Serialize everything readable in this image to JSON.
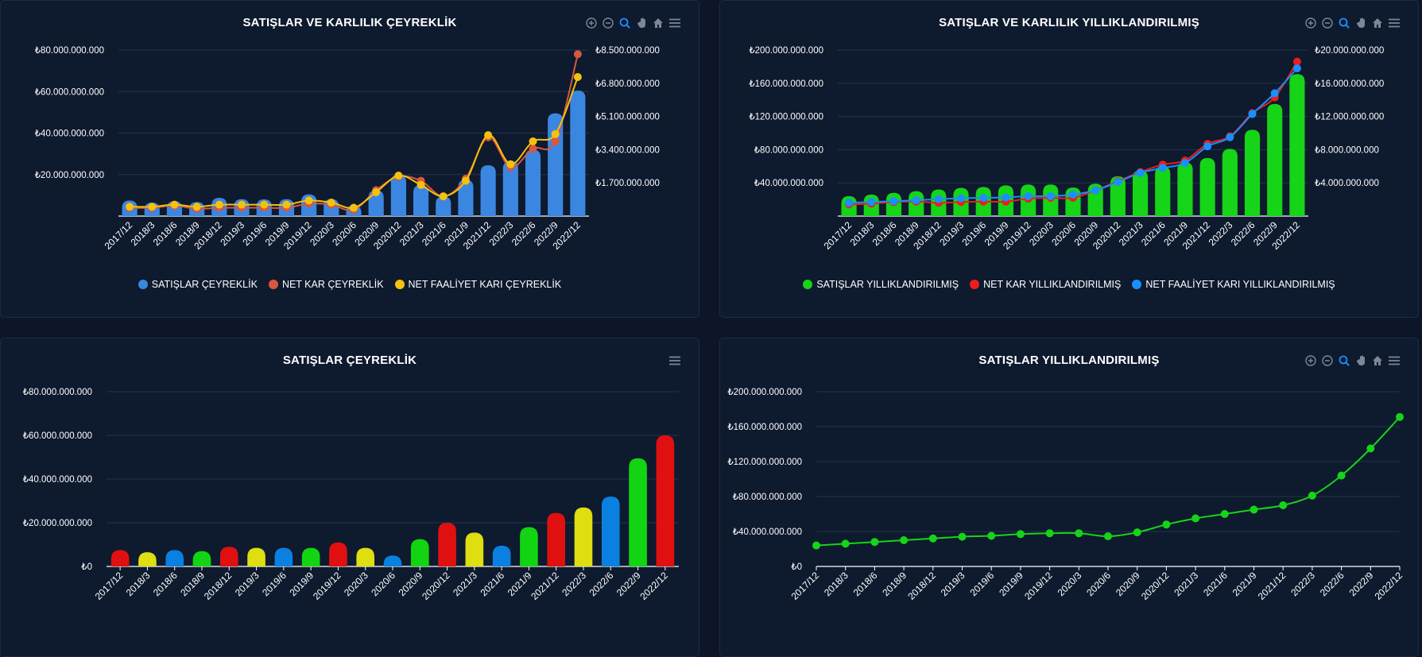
{
  "panels": [
    {
      "title": "SATIŞLAR VE KARLILIK ÇEYREKLİK",
      "toolbar": [
        "zoom-in-icon",
        "zoom-out-icon",
        "selection-zoom-icon",
        "pan-hand-icon",
        "home-reset-icon",
        "menu-icon"
      ],
      "legend": [
        {
          "label": "SATIŞLAR ÇEYREKLİK",
          "color": "#3b86e0"
        },
        {
          "label": "NET KAR ÇEYREKLİK",
          "color": "#d9573f"
        },
        {
          "label": "NET FAALİYET KARI ÇEYREKLİK",
          "color": "#f4c20d"
        }
      ]
    },
    {
      "title": "SATIŞLAR VE KARLILIK YILLIKLANDIRILMIŞ",
      "toolbar": [
        "zoom-in-icon",
        "zoom-out-icon",
        "selection-zoom-icon",
        "pan-hand-icon",
        "home-reset-icon",
        "menu-icon"
      ],
      "legend": [
        {
          "label": "SATIŞLAR YILLIKLANDIRILMIŞ",
          "color": "#16d418"
        },
        {
          "label": "NET KAR YILLIKLANDIRILMIŞ",
          "color": "#ee1c1c"
        },
        {
          "label": "NET FAALİYET KARI YILLIKLANDIRILMIŞ",
          "color": "#1a8fff"
        }
      ]
    },
    {
      "title": "SATIŞLAR ÇEYREKLİK",
      "toolbar": [
        "menu-icon"
      ]
    },
    {
      "title": "SATIŞLAR YILLIKLANDIRILMIŞ",
      "toolbar": [
        "zoom-in-icon",
        "zoom-out-icon",
        "selection-zoom-icon",
        "pan-hand-icon",
        "home-reset-icon",
        "menu-icon"
      ]
    }
  ],
  "chart_data": [
    {
      "type": "bar+line",
      "title": "SATIŞLAR VE KARLILIK ÇEYREKLİK",
      "categories": [
        "2017/12",
        "2018/3",
        "2018/6",
        "2018/9",
        "2018/12",
        "2019/3",
        "2019/6",
        "2019/9",
        "2019/12",
        "2020/3",
        "2020/6",
        "2020/9",
        "2020/12",
        "2021/3",
        "2021/6",
        "2021/9",
        "2021/12",
        "2022/3",
        "2022/6",
        "2022/9",
        "2022/12"
      ],
      "y_left": {
        "ticks": [
          20000000000,
          40000000000,
          60000000000,
          80000000000
        ],
        "tick_labels": [
          "₺20.000.000.000",
          "₺40.000.000.000",
          "₺60.000.000.000",
          "₺80.000.000.000"
        ],
        "range": [
          0,
          80000000000
        ]
      },
      "y_right": {
        "ticks": [
          1700000000,
          3400000000,
          5100000000,
          6800000000,
          8500000000
        ],
        "tick_labels": [
          "₺1.700.000.000",
          "₺3.400.000.000",
          "₺5.100.000.000",
          "₺6.800.000.000",
          "₺8.500.000.000"
        ],
        "range": [
          0,
          8500000000
        ]
      },
      "grid": true,
      "legend_position": "bottom",
      "series": [
        {
          "name": "SATIŞLAR ÇEYREKLİK",
          "type": "bar",
          "axis": "left",
          "color": "#3b86e0",
          "values": [
            7500000000,
            6500000000,
            7200000000,
            6800000000,
            8800000000,
            8200000000,
            8100000000,
            8200000000,
            10500000000,
            8200000000,
            5200000000,
            12500000000,
            20000000000,
            15000000000,
            9500000000,
            17500000000,
            24500000000,
            26500000000,
            32000000000,
            49500000000,
            60500000000
          ]
        },
        {
          "name": "NET KAR ÇEYREKLİK",
          "type": "line",
          "axis": "left",
          "color": "#d9573f",
          "values": [
            4000000000,
            4000000000,
            5000000000,
            3500000000,
            4000000000,
            4000000000,
            4000000000,
            4000000000,
            6000000000,
            5500000000,
            3000000000,
            12500000000,
            19000000000,
            17000000000,
            9500000000,
            18000000000,
            38000000000,
            23500000000,
            32500000000,
            36000000000,
            78000000000
          ]
        },
        {
          "name": "NET FAALİYET KARI ÇEYREKLİK",
          "type": "line",
          "axis": "left",
          "color": "#f4c20d",
          "values": [
            4500000000,
            4500000000,
            5500000000,
            4500000000,
            5500000000,
            5500000000,
            5500000000,
            5500000000,
            7500000000,
            6500000000,
            4000000000,
            11500000000,
            19500000000,
            15000000000,
            9500000000,
            17000000000,
            39000000000,
            25000000000,
            36000000000,
            39500000000,
            67000000000
          ]
        }
      ]
    },
    {
      "type": "bar+line",
      "title": "SATIŞLAR VE KARLILIK YILLIKLANDIRILMIŞ",
      "categories": [
        "2017/12",
        "2018/3",
        "2018/6",
        "2018/9",
        "2018/12",
        "2019/3",
        "2019/6",
        "2019/9",
        "2019/12",
        "2020/3",
        "2020/6",
        "2020/9",
        "2020/12",
        "2021/3",
        "2021/6",
        "2021/9",
        "2021/12",
        "2022/3",
        "2022/6",
        "2022/9",
        "2022/12"
      ],
      "y_left": {
        "ticks": [
          40000000000,
          80000000000,
          120000000000,
          160000000000,
          200000000000
        ],
        "tick_labels": [
          "₺40.000.000.000",
          "₺80.000.000.000",
          "₺120.000.000.000",
          "₺160.000.000.000",
          "₺200.000.000.000"
        ],
        "range": [
          0,
          200000000000
        ]
      },
      "y_right": {
        "ticks": [
          4000000000,
          8000000000,
          12000000000,
          16000000000,
          20000000000
        ],
        "tick_labels": [
          "₺4.000.000.000",
          "₺8.000.000.000",
          "₺12.000.000.000",
          "₺16.000.000.000",
          "₺20.000.000.000"
        ],
        "range": [
          0,
          20000000000
        ]
      },
      "grid": true,
      "legend_position": "bottom",
      "series": [
        {
          "name": "SATIŞLAR YILLIKLANDIRILMIŞ",
          "type": "bar",
          "axis": "left",
          "color": "#16d418",
          "values": [
            24000000000,
            26000000000,
            28000000000,
            30000000000,
            32000000000,
            34000000000,
            35000000000,
            37000000000,
            38000000000,
            38000000000,
            34500000000,
            39000000000,
            48000000000,
            55000000000,
            60000000000,
            65000000000,
            70000000000,
            81000000000,
            104000000000,
            135000000000,
            171000000000
          ]
        },
        {
          "name": "NET KAR YILLIKLANDIRILMIŞ",
          "type": "line",
          "axis": "left",
          "color": "#ee1c1c",
          "values": [
            14000000000,
            15000000000,
            17000000000,
            17500000000,
            16000000000,
            17000000000,
            17500000000,
            17500000000,
            21000000000,
            22000000000,
            22000000000,
            31000000000,
            42000000000,
            53000000000,
            62000000000,
            67000000000,
            87000000000,
            96000000000,
            124000000000,
            143000000000,
            186000000000
          ]
        },
        {
          "name": "NET FAALİYET KARI YILLIKLANDIRILMIŞ",
          "type": "line",
          "axis": "left",
          "color": "#1a8fff",
          "values": [
            16000000000,
            17000000000,
            18000000000,
            19000000000,
            20500000000,
            21500000000,
            22000000000,
            22500000000,
            24000000000,
            24000000000,
            26000000000,
            31000000000,
            41000000000,
            52000000000,
            58000000000,
            64000000000,
            84000000000,
            95000000000,
            123000000000,
            148000000000,
            178000000000
          ]
        }
      ]
    },
    {
      "type": "bar",
      "title": "SATIŞLAR ÇEYREKLİK",
      "categories": [
        "2017/12",
        "2018/3",
        "2018/6",
        "2018/9",
        "2018/12",
        "2019/3",
        "2019/6",
        "2019/9",
        "2019/12",
        "2020/3",
        "2020/6",
        "2020/9",
        "2020/12",
        "2021/3",
        "2021/6",
        "2021/9",
        "2021/12",
        "2022/3",
        "2022/6",
        "2022/9",
        "2022/12"
      ],
      "y_left": {
        "ticks": [
          0,
          20000000000,
          40000000000,
          60000000000,
          80000000000
        ],
        "tick_labels": [
          "₺0",
          "₺20.000.000.000",
          "₺40.000.000.000",
          "₺60.000.000.000",
          "₺80.000.000.000"
        ],
        "range": [
          0,
          80000000000
        ]
      },
      "grid": true,
      "bar_colors": [
        "#e01010",
        "#dede10",
        "#0a80e0",
        "#12d412"
      ],
      "values": [
        7500000000,
        6500000000,
        7500000000,
        7000000000,
        9000000000,
        8500000000,
        8500000000,
        8500000000,
        11000000000,
        8500000000,
        5000000000,
        12500000000,
        20000000000,
        15500000000,
        9500000000,
        18000000000,
        24500000000,
        27000000000,
        32000000000,
        49500000000,
        60000000000
      ]
    },
    {
      "type": "line",
      "title": "SATIŞLAR YILLIKLANDIRILMIŞ",
      "categories": [
        "2017/12",
        "2018/3",
        "2018/6",
        "2018/9",
        "2018/12",
        "2019/3",
        "2019/6",
        "2019/9",
        "2019/12",
        "2020/3",
        "2020/6",
        "2020/9",
        "2020/12",
        "2021/3",
        "2021/6",
        "2021/9",
        "2021/12",
        "2022/3",
        "2022/6",
        "2022/9",
        "2022/12"
      ],
      "y_left": {
        "ticks": [
          0,
          40000000000,
          80000000000,
          120000000000,
          160000000000,
          200000000000
        ],
        "tick_labels": [
          "₺0",
          "₺40.000.000.000",
          "₺80.000.000.000",
          "₺120.000.000.000",
          "₺160.000.000.000",
          "₺200.000.000.000"
        ],
        "range": [
          0,
          200000000000
        ]
      },
      "grid": true,
      "series": [
        {
          "name": "SATIŞLAR YILLIKLANDIRILMIŞ",
          "color": "#16d418",
          "values": [
            24000000000,
            26000000000,
            28000000000,
            30000000000,
            32000000000,
            34000000000,
            35000000000,
            37000000000,
            38000000000,
            38000000000,
            34500000000,
            39000000000,
            48000000000,
            55000000000,
            60000000000,
            65000000000,
            70000000000,
            81000000000,
            104000000000,
            135000000000,
            171000000000
          ]
        }
      ]
    }
  ]
}
